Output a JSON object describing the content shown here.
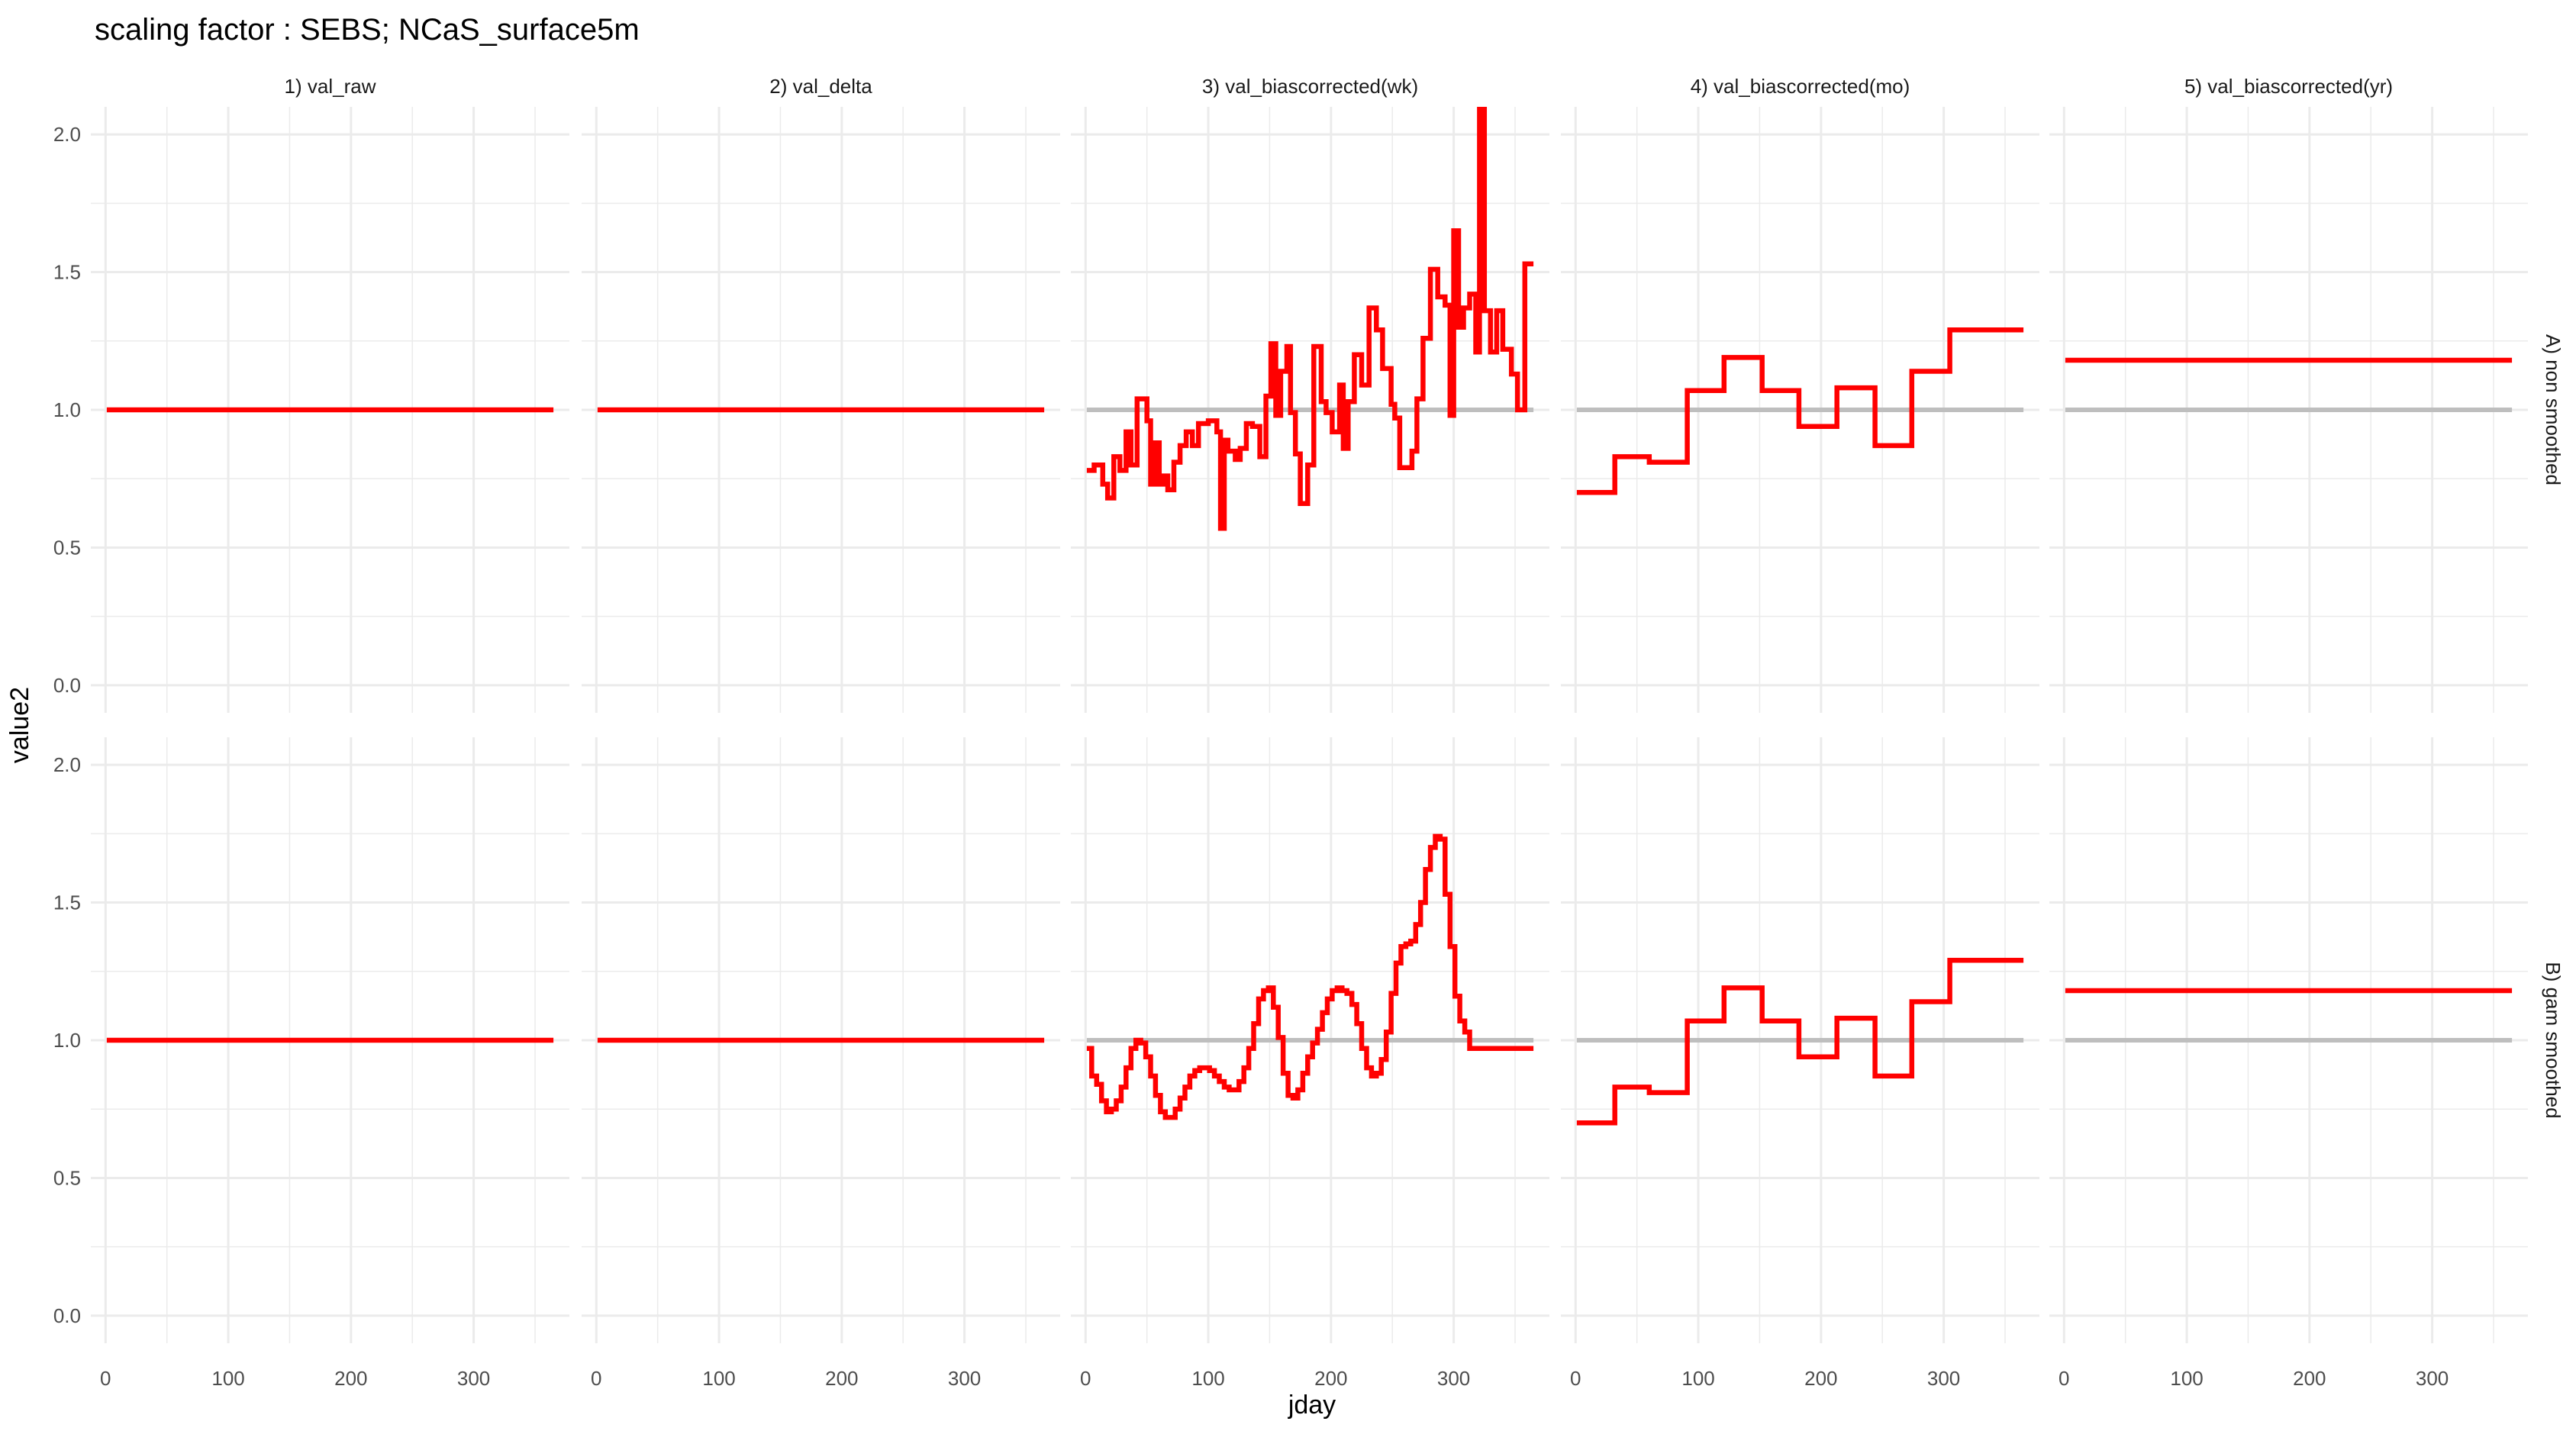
{
  "chart_data": {
    "type": "line",
    "title": "scaling factor : SEBS; NCaS_surface5m",
    "xlabel": "jday",
    "ylabel": "value2",
    "xlim": [
      -12,
      378
    ],
    "ylim": [
      -0.1,
      2.1
    ],
    "x_ticks": [
      0,
      100,
      200,
      300
    ],
    "y_ticks": [
      0.0,
      0.5,
      1.0,
      1.5,
      2.0
    ],
    "x_tick_labels": [
      "0",
      "100",
      "200",
      "300"
    ],
    "y_tick_labels": [
      "0.0",
      "0.5",
      "1.0",
      "1.5",
      "2.0"
    ],
    "grid": true,
    "legend": "none",
    "columns": [
      "1) val_raw",
      "2) val_delta",
      "3) val_biascorrected(wk)",
      "4) val_biascorrected(mo)",
      "5) val_biascorrected(yr)"
    ],
    "rows": [
      "A) non smoothed",
      "B) gam smoothed"
    ],
    "colors": {
      "series": "#ff0000",
      "reference": "#bebebe",
      "grid": "#ebebeb"
    },
    "panels": [
      {
        "row": 0,
        "col": 0,
        "reference": null,
        "series": [
          [
            1,
            1.0
          ],
          [
            365,
            1.0
          ]
        ]
      },
      {
        "row": 0,
        "col": 1,
        "reference": null,
        "series": [
          [
            1,
            1.0
          ],
          [
            365,
            1.0
          ]
        ]
      },
      {
        "row": 0,
        "col": 2,
        "reference": 1.0,
        "series": [
          [
            1,
            0.78
          ],
          [
            7,
            0.8
          ],
          [
            14,
            0.73
          ],
          [
            18,
            0.68
          ],
          [
            23,
            0.83
          ],
          [
            28,
            0.78
          ],
          [
            33,
            0.92
          ],
          [
            37,
            0.8
          ],
          [
            42,
            1.04
          ],
          [
            50,
            0.96
          ],
          [
            53,
            0.73
          ],
          [
            57,
            0.88
          ],
          [
            60,
            0.73
          ],
          [
            63,
            0.76
          ],
          [
            67,
            0.71
          ],
          [
            72,
            0.81
          ],
          [
            77,
            0.87
          ],
          [
            82,
            0.92
          ],
          [
            87,
            0.87
          ],
          [
            92,
            0.95
          ],
          [
            100,
            0.96
          ],
          [
            107,
            0.92
          ],
          [
            110,
            0.57
          ],
          [
            113,
            0.89
          ],
          [
            116,
            0.85
          ],
          [
            122,
            0.82
          ],
          [
            126,
            0.86
          ],
          [
            131,
            0.95
          ],
          [
            136,
            0.94
          ],
          [
            142,
            0.83
          ],
          [
            147,
            1.05
          ],
          [
            151,
            1.24
          ],
          [
            155,
            0.98
          ],
          [
            159,
            1.14
          ],
          [
            164,
            1.23
          ],
          [
            167,
            0.99
          ],
          [
            171,
            0.84
          ],
          [
            175,
            0.66
          ],
          [
            181,
            0.8
          ],
          [
            186,
            1.23
          ],
          [
            192,
            1.03
          ],
          [
            196,
            0.99
          ],
          [
            201,
            0.92
          ],
          [
            207,
            1.09
          ],
          [
            210,
            0.86
          ],
          [
            214,
            1.03
          ],
          [
            219,
            1.2
          ],
          [
            225,
            1.09
          ],
          [
            231,
            1.37
          ],
          [
            237,
            1.29
          ],
          [
            242,
            1.15
          ],
          [
            249,
            1.02
          ],
          [
            252,
            0.97
          ],
          [
            256,
            0.79
          ],
          [
            262,
            0.79
          ],
          [
            266,
            0.85
          ],
          [
            270,
            1.04
          ],
          [
            275,
            1.26
          ],
          [
            281,
            1.51
          ],
          [
            287,
            1.41
          ],
          [
            293,
            1.38
          ],
          [
            297,
            0.98
          ],
          [
            300,
            1.65
          ],
          [
            304,
            1.3
          ],
          [
            308,
            1.37
          ],
          [
            313,
            1.42
          ],
          [
            318,
            1.21
          ],
          [
            321,
            2.3
          ],
          [
            325,
            1.36
          ],
          [
            330,
            1.21
          ],
          [
            335,
            1.36
          ],
          [
            340,
            1.22
          ],
          [
            347,
            1.13
          ],
          [
            352,
            1.0
          ],
          [
            358,
            1.53
          ],
          [
            365,
            1.53
          ]
        ]
      },
      {
        "row": 0,
        "col": 3,
        "reference": 1.0,
        "series": [
          [
            1,
            0.7
          ],
          [
            32,
            0.83
          ],
          [
            60,
            0.81
          ],
          [
            91,
            1.07
          ],
          [
            121,
            1.19
          ],
          [
            152,
            1.07
          ],
          [
            182,
            0.94
          ],
          [
            213,
            1.08
          ],
          [
            244,
            0.87
          ],
          [
            274,
            1.14
          ],
          [
            305,
            1.29
          ],
          [
            335,
            1.29
          ],
          [
            365,
            1.29
          ]
        ]
      },
      {
        "row": 0,
        "col": 4,
        "reference": 1.0,
        "series": [
          [
            1,
            1.18
          ],
          [
            365,
            1.18
          ]
        ]
      },
      {
        "row": 1,
        "col": 0,
        "reference": null,
        "series": [
          [
            1,
            1.0
          ],
          [
            365,
            1.0
          ]
        ]
      },
      {
        "row": 1,
        "col": 1,
        "reference": null,
        "series": [
          [
            1,
            1.0
          ],
          [
            365,
            1.0
          ]
        ]
      },
      {
        "row": 1,
        "col": 2,
        "reference": 1.0,
        "series": [
          [
            1,
            0.97
          ],
          [
            5,
            0.87
          ],
          [
            9,
            0.84
          ],
          [
            13,
            0.78
          ],
          [
            17,
            0.74
          ],
          [
            21,
            0.75
          ],
          [
            25,
            0.78
          ],
          [
            29,
            0.83
          ],
          [
            33,
            0.9
          ],
          [
            37,
            0.97
          ],
          [
            41,
            1.0
          ],
          [
            45,
            0.99
          ],
          [
            49,
            0.94
          ],
          [
            53,
            0.87
          ],
          [
            57,
            0.8
          ],
          [
            61,
            0.74
          ],
          [
            65,
            0.72
          ],
          [
            69,
            0.72
          ],
          [
            73,
            0.75
          ],
          [
            77,
            0.79
          ],
          [
            81,
            0.83
          ],
          [
            85,
            0.87
          ],
          [
            89,
            0.89
          ],
          [
            93,
            0.9
          ],
          [
            97,
            0.9
          ],
          [
            101,
            0.89
          ],
          [
            105,
            0.87
          ],
          [
            109,
            0.85
          ],
          [
            113,
            0.83
          ],
          [
            117,
            0.82
          ],
          [
            121,
            0.82
          ],
          [
            125,
            0.85
          ],
          [
            129,
            0.9
          ],
          [
            133,
            0.97
          ],
          [
            137,
            1.06
          ],
          [
            141,
            1.15
          ],
          [
            145,
            1.18
          ],
          [
            149,
            1.19
          ],
          [
            153,
            1.12
          ],
          [
            157,
            1.01
          ],
          [
            161,
            0.88
          ],
          [
            165,
            0.8
          ],
          [
            169,
            0.79
          ],
          [
            173,
            0.82
          ],
          [
            177,
            0.88
          ],
          [
            181,
            0.94
          ],
          [
            185,
            0.99
          ],
          [
            189,
            1.04
          ],
          [
            193,
            1.1
          ],
          [
            197,
            1.15
          ],
          [
            201,
            1.18
          ],
          [
            205,
            1.19
          ],
          [
            209,
            1.18
          ],
          [
            213,
            1.17
          ],
          [
            217,
            1.13
          ],
          [
            221,
            1.06
          ],
          [
            225,
            0.97
          ],
          [
            229,
            0.9
          ],
          [
            233,
            0.87
          ],
          [
            237,
            0.88
          ],
          [
            241,
            0.93
          ],
          [
            245,
            1.03
          ],
          [
            249,
            1.17
          ],
          [
            253,
            1.28
          ],
          [
            257,
            1.34
          ],
          [
            261,
            1.35
          ],
          [
            265,
            1.36
          ],
          [
            269,
            1.42
          ],
          [
            273,
            1.5
          ],
          [
            277,
            1.62
          ],
          [
            281,
            1.7
          ],
          [
            285,
            1.74
          ],
          [
            289,
            1.73
          ],
          [
            293,
            1.53
          ],
          [
            297,
            1.34
          ],
          [
            301,
            1.16
          ],
          [
            305,
            1.07
          ],
          [
            309,
            1.03
          ],
          [
            313,
            0.97
          ],
          [
            317,
            0.97
          ],
          [
            365,
            0.97
          ]
        ]
      },
      {
        "row": 1,
        "col": 3,
        "reference": 1.0,
        "series": [
          [
            1,
            0.7
          ],
          [
            32,
            0.83
          ],
          [
            60,
            0.81
          ],
          [
            91,
            1.07
          ],
          [
            121,
            1.19
          ],
          [
            152,
            1.07
          ],
          [
            182,
            0.94
          ],
          [
            213,
            1.08
          ],
          [
            244,
            0.87
          ],
          [
            274,
            1.14
          ],
          [
            305,
            1.29
          ],
          [
            335,
            1.29
          ],
          [
            365,
            1.29
          ]
        ]
      },
      {
        "row": 1,
        "col": 4,
        "reference": 1.0,
        "series": [
          [
            1,
            1.18
          ],
          [
            365,
            1.18
          ]
        ]
      }
    ]
  }
}
